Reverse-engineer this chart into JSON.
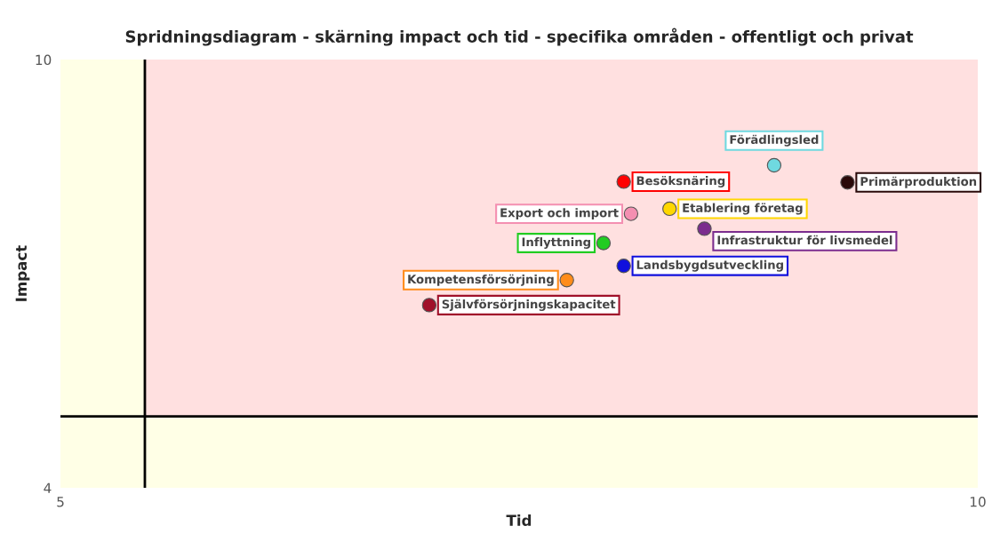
{
  "chart_data": {
    "type": "scatter",
    "title": "Spridningsdiagram - skärning impact och tid - specifika områden - offentligt och privat",
    "xlabel": "Tid",
    "ylabel": "Impact",
    "xlim": [
      5,
      10
    ],
    "ylim": [
      4,
      10
    ],
    "xticks": [
      5,
      10
    ],
    "yticks": [
      4,
      10
    ],
    "grid": false,
    "legend": false,
    "marker": "circle",
    "bands": [
      {
        "axis": "y",
        "from": 5,
        "to": 10,
        "color": "#ffe0e0"
      },
      {
        "axis": "y",
        "from": 4,
        "to": 5,
        "color": "#ffffe6"
      },
      {
        "axis": "x",
        "from": 5,
        "to": 5.46,
        "color": "#ffffe6"
      }
    ],
    "ref_lines": [
      {
        "axis": "x",
        "value": 5.46,
        "color": "#000000"
      },
      {
        "axis": "y",
        "value": 5,
        "color": "#000000"
      }
    ],
    "series": [
      {
        "name": "Förädlingsled",
        "color": "#6fd9e0",
        "x": [
          8.89
        ],
        "values": [
          8.52
        ]
      },
      {
        "name": "Besöksnäring",
        "color": "#ff0000",
        "x": [
          8.07
        ],
        "values": [
          8.29
        ]
      },
      {
        "name": "Primärproduktion",
        "color": "#2a0a0a",
        "x": [
          9.29
        ],
        "values": [
          8.28
        ]
      },
      {
        "name": "Export och import",
        "color": "#f48fb1",
        "x": [
          8.11
        ],
        "values": [
          7.84
        ]
      },
      {
        "name": "Etablering företag",
        "color": "#ffd700",
        "x": [
          8.32
        ],
        "values": [
          7.91
        ]
      },
      {
        "name": "Infrastruktur för livsmedel",
        "color": "#7b2d8e",
        "x": [
          8.51
        ],
        "values": [
          7.63
        ]
      },
      {
        "name": "Inflyttning",
        "color": "#22cc22",
        "x": [
          7.96
        ],
        "values": [
          7.43
        ]
      },
      {
        "name": "Landsbygdsutveckling",
        "color": "#1010dd",
        "x": [
          8.07
        ],
        "values": [
          7.11
        ]
      },
      {
        "name": "Kompetensförsörjning",
        "color": "#ff8c1a",
        "x": [
          7.76
        ],
        "values": [
          6.91
        ]
      },
      {
        "name": "Självförsörjningskapacitet",
        "color": "#a0102a",
        "x": [
          7.01
        ],
        "values": [
          6.56
        ]
      }
    ]
  }
}
